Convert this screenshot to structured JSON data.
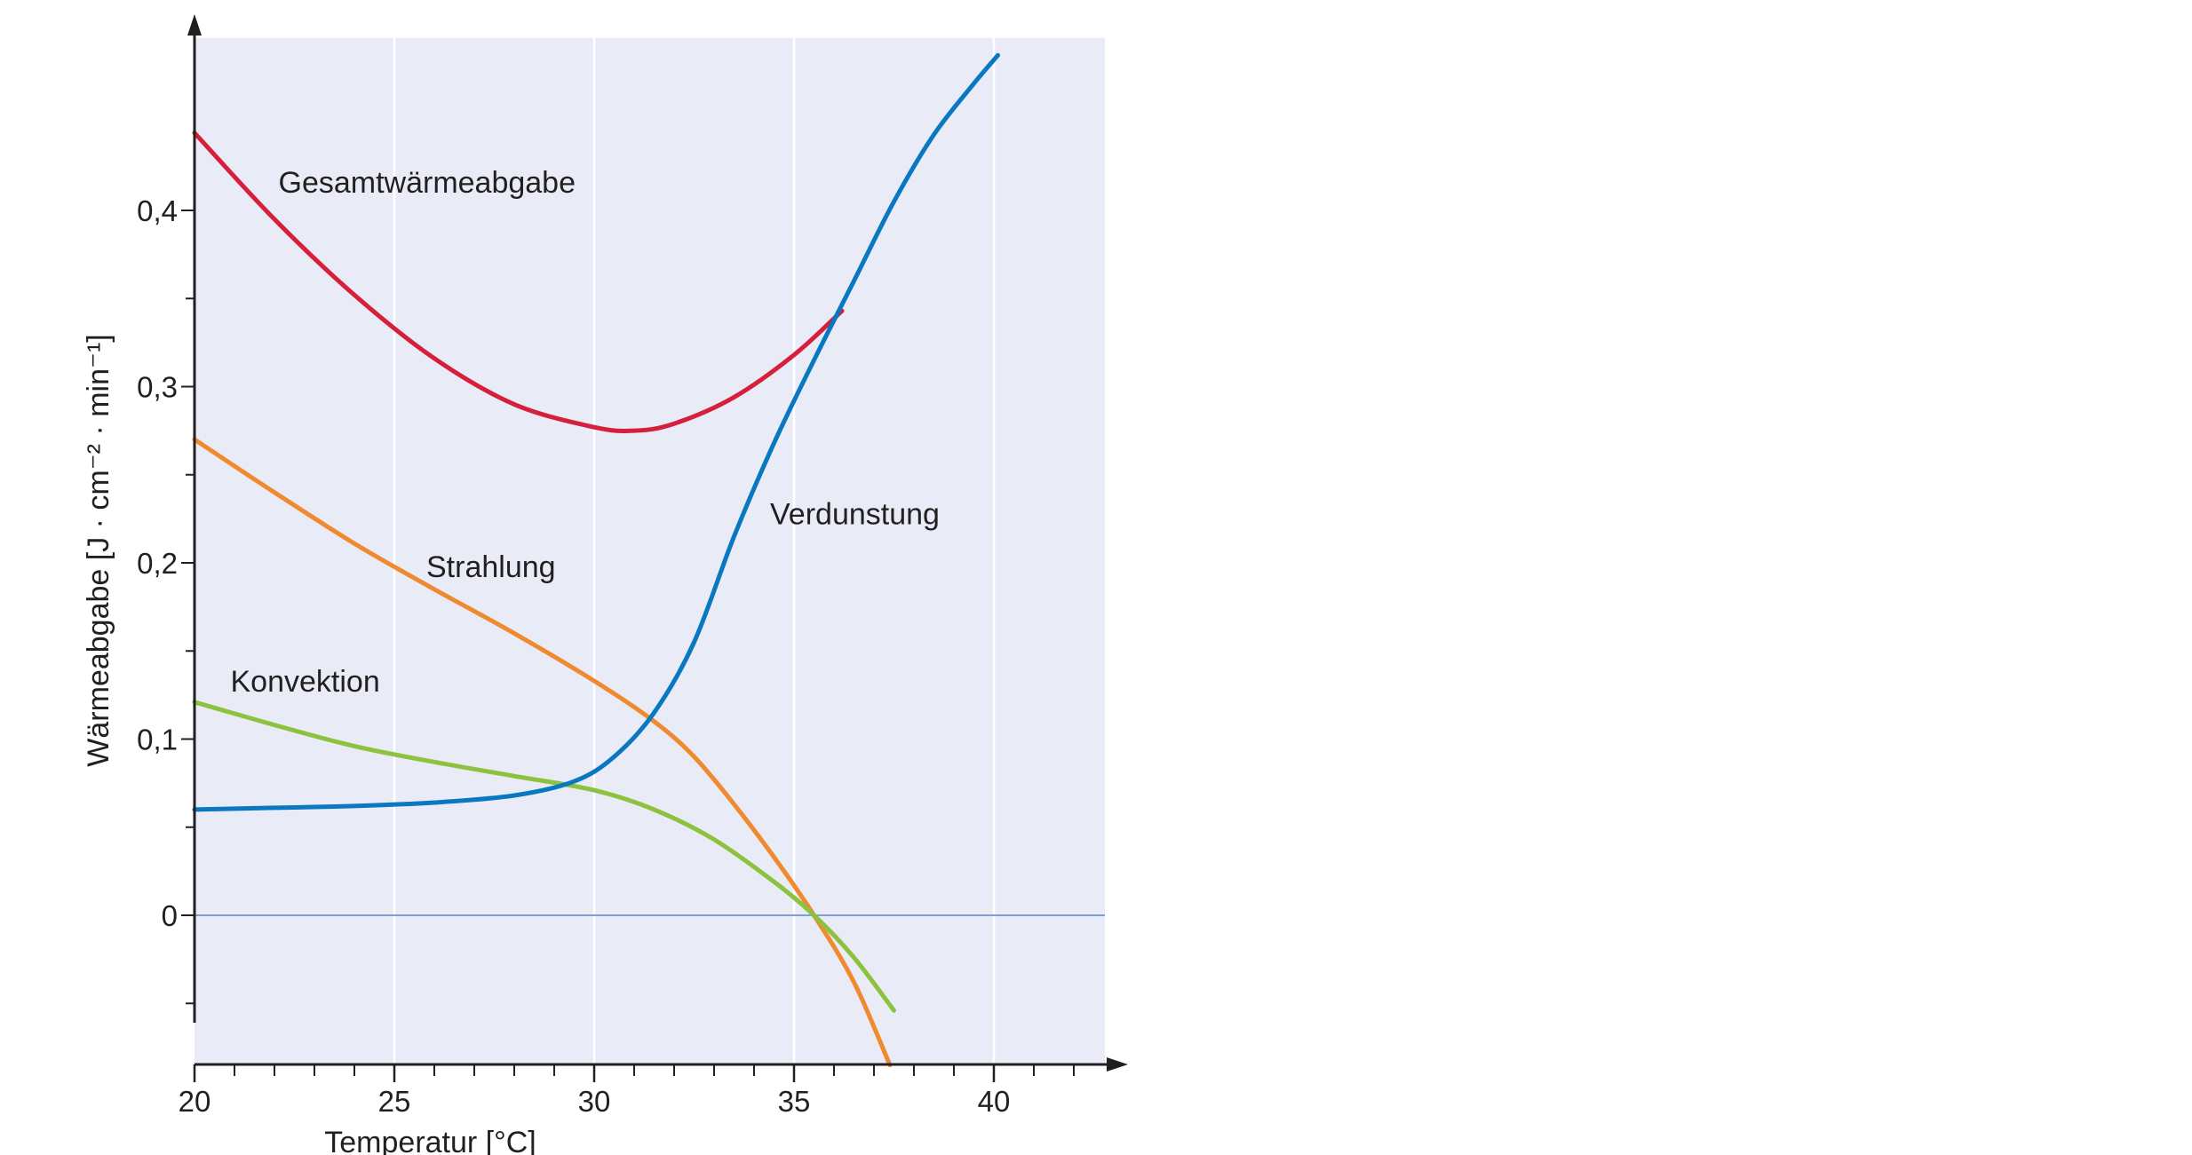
{
  "chart_data": {
    "type": "line",
    "xlabel": "Temperatur [°C]",
    "ylabel": "Wärmeabgabe [J · cm⁻² · min⁻¹]",
    "xlim": [
      20,
      42.6
    ],
    "ylim": [
      -0.085,
      0.5
    ],
    "x_ticks": [
      20,
      25,
      30,
      35,
      40
    ],
    "x_tick_labels": [
      "20",
      "25",
      "30",
      "35",
      "40"
    ],
    "y_ticks": [
      0,
      0.1,
      0.2,
      0.3,
      0.4
    ],
    "y_tick_labels": [
      "0",
      "0,1",
      "0,2",
      "0,3",
      "0,4"
    ],
    "grid": "vertical",
    "colors": {
      "plot_background": "#e9ecf7",
      "zero_line": "#7e9fd6",
      "axis": "#231f20"
    },
    "series": [
      {
        "name": "Gesamtwärmeabgabe",
        "color": "#d61f3a",
        "points": [
          [
            20,
            0.444
          ],
          [
            22,
            0.395
          ],
          [
            24,
            0.352
          ],
          [
            26,
            0.316
          ],
          [
            28,
            0.29
          ],
          [
            30,
            0.277
          ],
          [
            31,
            0.275
          ],
          [
            32,
            0.279
          ],
          [
            33.5,
            0.294
          ],
          [
            35,
            0.318
          ],
          [
            36.2,
            0.343
          ]
        ]
      },
      {
        "name": "Verdunstung",
        "color": "#0a78c0",
        "points": [
          [
            20,
            0.06
          ],
          [
            22,
            0.061
          ],
          [
            24,
            0.062
          ],
          [
            26,
            0.064
          ],
          [
            28,
            0.068
          ],
          [
            29.5,
            0.076
          ],
          [
            30.5,
            0.09
          ],
          [
            31.5,
            0.115
          ],
          [
            32.5,
            0.155
          ],
          [
            33.5,
            0.215
          ],
          [
            34.5,
            0.268
          ],
          [
            35.5,
            0.315
          ],
          [
            36.5,
            0.36
          ],
          [
            37.5,
            0.405
          ],
          [
            38.5,
            0.443
          ],
          [
            39.5,
            0.472
          ],
          [
            40.1,
            0.488
          ]
        ]
      },
      {
        "name": "Strahlung",
        "color": "#ef8a30",
        "points": [
          [
            20,
            0.27
          ],
          [
            22,
            0.24
          ],
          [
            24,
            0.211
          ],
          [
            26,
            0.185
          ],
          [
            28,
            0.16
          ],
          [
            30,
            0.133
          ],
          [
            31.5,
            0.11
          ],
          [
            32.5,
            0.09
          ],
          [
            33.5,
            0.063
          ],
          [
            34.5,
            0.033
          ],
          [
            35.5,
            0.0
          ],
          [
            36.5,
            -0.038
          ],
          [
            37.4,
            -0.085
          ]
        ]
      },
      {
        "name": "Konvektion",
        "color": "#8dc23f",
        "points": [
          [
            20,
            0.121
          ],
          [
            22,
            0.108
          ],
          [
            24,
            0.096
          ],
          [
            26,
            0.087
          ],
          [
            28,
            0.079
          ],
          [
            30,
            0.071
          ],
          [
            31.5,
            0.06
          ],
          [
            33,
            0.043
          ],
          [
            34.5,
            0.019
          ],
          [
            35.5,
            0.0
          ],
          [
            36.5,
            -0.024
          ],
          [
            37.5,
            -0.054
          ]
        ]
      }
    ],
    "annotations": [
      {
        "text": "Gesamtwärmeabgabe",
        "x": 22.1,
        "y": 0.41
      },
      {
        "text": "Strahlung",
        "x": 25.8,
        "y": 0.192
      },
      {
        "text": "Konvektion",
        "x": 20.9,
        "y": 0.127
      },
      {
        "text": "Verdunstung",
        "x": 34.4,
        "y": 0.222
      }
    ]
  }
}
